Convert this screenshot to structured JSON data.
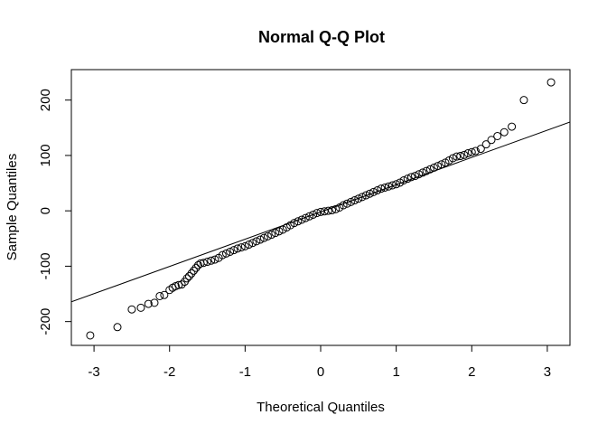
{
  "chart_data": {
    "type": "scatter",
    "title": "Normal Q-Q Plot",
    "xlabel": "Theoretical Quantiles",
    "ylabel": "Sample Quantiles",
    "xlim": [
      -3.3,
      3.3
    ],
    "ylim": [
      -243,
      255
    ],
    "x_ticks": [
      -3,
      -2,
      -1,
      0,
      1,
      2,
      3
    ],
    "y_ticks": [
      -200,
      -100,
      0,
      100,
      200
    ],
    "x_tick_labels": [
      "-3",
      "-2",
      "-1",
      "0",
      "1",
      "2",
      "3"
    ],
    "y_tick_labels": [
      "-200",
      "-100",
      "0",
      "100",
      "200"
    ],
    "reference_line": {
      "intercept": -2,
      "slope": 49.2
    },
    "grid": false,
    "legend": "none",
    "marker": "open-circle",
    "points": [
      [
        -3.05,
        -225
      ],
      [
        -2.69,
        -210
      ],
      [
        -2.5,
        -178
      ],
      [
        -2.38,
        -175
      ],
      [
        -2.28,
        -168
      ],
      [
        -2.2,
        -166
      ],
      [
        -2.13,
        -154
      ],
      [
        -2.07,
        -152
      ],
      [
        -2.0,
        -143
      ],
      [
        -1.96,
        -139
      ],
      [
        -1.92,
        -136
      ],
      [
        -1.88,
        -134
      ],
      [
        -1.84,
        -133
      ],
      [
        -1.8,
        -128
      ],
      [
        -1.77,
        -122
      ],
      [
        -1.74,
        -118
      ],
      [
        -1.71,
        -113
      ],
      [
        -1.68,
        -108
      ],
      [
        -1.65,
        -103
      ],
      [
        -1.62,
        -98
      ],
      [
        -1.59,
        -95
      ],
      [
        -1.55,
        -94
      ],
      [
        -1.5,
        -92
      ],
      [
        -1.45,
        -90
      ],
      [
        -1.4,
        -88
      ],
      [
        -1.35,
        -85
      ],
      [
        -1.3,
        -80
      ],
      [
        -1.25,
        -77
      ],
      [
        -1.2,
        -74
      ],
      [
        -1.15,
        -71
      ],
      [
        -1.1,
        -68
      ],
      [
        -1.05,
        -66
      ],
      [
        -1.0,
        -64
      ],
      [
        -0.95,
        -61
      ],
      [
        -0.9,
        -58
      ],
      [
        -0.85,
        -55
      ],
      [
        -0.8,
        -52
      ],
      [
        -0.75,
        -49
      ],
      [
        -0.7,
        -46
      ],
      [
        -0.65,
        -43
      ],
      [
        -0.6,
        -40
      ],
      [
        -0.55,
        -37
      ],
      [
        -0.5,
        -34
      ],
      [
        -0.45,
        -30
      ],
      [
        -0.4,
        -26
      ],
      [
        -0.35,
        -22
      ],
      [
        -0.3,
        -19
      ],
      [
        -0.25,
        -16
      ],
      [
        -0.2,
        -13
      ],
      [
        -0.15,
        -10
      ],
      [
        -0.1,
        -7
      ],
      [
        -0.05,
        -4
      ],
      [
        0.0,
        -2
      ],
      [
        0.05,
        -1
      ],
      [
        0.1,
        0
      ],
      [
        0.15,
        1
      ],
      [
        0.2,
        3
      ],
      [
        0.25,
        6
      ],
      [
        0.3,
        10
      ],
      [
        0.35,
        13
      ],
      [
        0.4,
        16
      ],
      [
        0.45,
        19
      ],
      [
        0.5,
        22
      ],
      [
        0.55,
        25
      ],
      [
        0.6,
        28
      ],
      [
        0.65,
        31
      ],
      [
        0.7,
        34
      ],
      [
        0.75,
        37
      ],
      [
        0.8,
        40
      ],
      [
        0.85,
        42
      ],
      [
        0.9,
        44
      ],
      [
        0.95,
        46
      ],
      [
        1.0,
        48
      ],
      [
        1.05,
        51
      ],
      [
        1.1,
        55
      ],
      [
        1.15,
        58
      ],
      [
        1.2,
        61
      ],
      [
        1.25,
        63
      ],
      [
        1.3,
        66
      ],
      [
        1.35,
        69
      ],
      [
        1.4,
        72
      ],
      [
        1.45,
        75
      ],
      [
        1.5,
        78
      ],
      [
        1.55,
        81
      ],
      [
        1.6,
        84
      ],
      [
        1.65,
        87
      ],
      [
        1.7,
        91
      ],
      [
        1.75,
        95
      ],
      [
        1.8,
        98
      ],
      [
        1.85,
        99
      ],
      [
        1.9,
        101
      ],
      [
        1.95,
        104
      ],
      [
        2.0,
        106
      ],
      [
        2.05,
        108
      ],
      [
        2.12,
        112
      ],
      [
        2.19,
        120
      ],
      [
        2.26,
        128
      ],
      [
        2.34,
        135
      ],
      [
        2.43,
        142
      ],
      [
        2.53,
        152
      ],
      [
        2.69,
        200
      ],
      [
        3.05,
        232
      ]
    ]
  }
}
